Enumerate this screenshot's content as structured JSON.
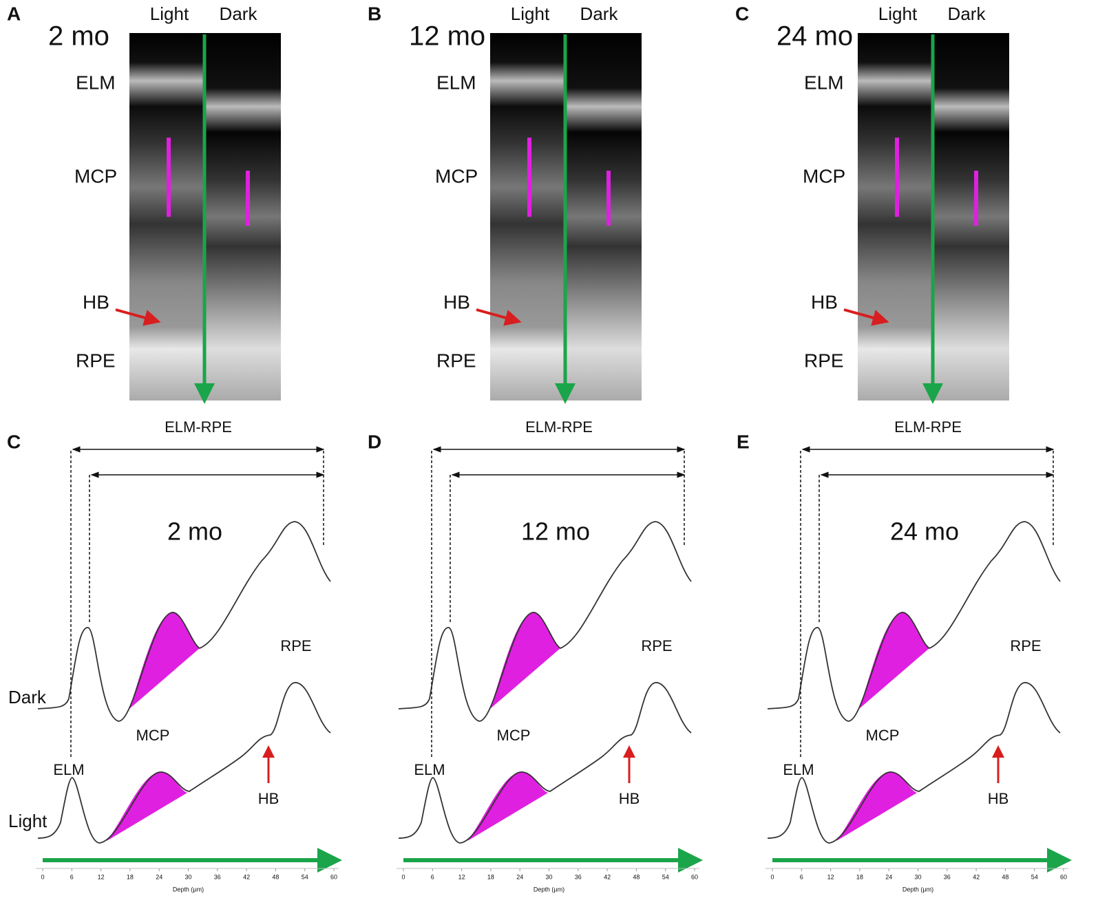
{
  "top_panels": [
    {
      "letter": "A",
      "age": "2 mo",
      "light": "Light",
      "dark": "Dark",
      "elm": "ELM",
      "mcp": "MCP",
      "hb": "HB",
      "rpe": "RPE"
    },
    {
      "letter": "B",
      "age": "12 mo",
      "light": "Light",
      "dark": "Dark",
      "elm": "ELM",
      "mcp": "MCP",
      "hb": "HB",
      "rpe": "RPE"
    },
    {
      "letter": "C",
      "age": "24 mo",
      "light": "Light",
      "dark": "Dark",
      "elm": "ELM",
      "mcp": "MCP",
      "hb": "HB",
      "rpe": "RPE"
    }
  ],
  "bottom_panels": [
    {
      "letter": "C",
      "age": "2 mo",
      "span": "ELM-RPE",
      "dark": "Dark",
      "light": "Light",
      "elm": "ELM",
      "mcp": "MCP",
      "rpe": "RPE",
      "hb": "HB"
    },
    {
      "letter": "D",
      "age": "12 mo",
      "span": "ELM-RPE",
      "elm": "ELM",
      "mcp": "MCP",
      "rpe": "RPE",
      "hb": "HB"
    },
    {
      "letter": "E",
      "age": "24 mo",
      "span": "ELM-RPE",
      "elm": "ELM",
      "mcp": "MCP",
      "rpe": "RPE",
      "hb": "HB"
    }
  ],
  "axis": {
    "xlim": [
      0,
      60
    ],
    "xticks": [
      0,
      6,
      12,
      18,
      24,
      30,
      36,
      42,
      48,
      54,
      60
    ],
    "xlabel": "Depth (μm)"
  }
}
